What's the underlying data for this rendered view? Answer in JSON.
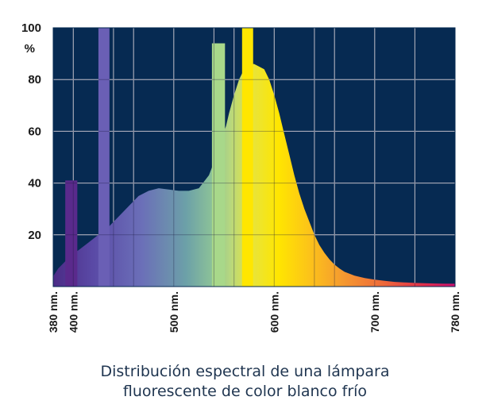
{
  "chart_data": {
    "type": "area",
    "title": "",
    "xlabel": "",
    "ylabel": "%",
    "xlim": [
      380,
      780
    ],
    "ylim": [
      0,
      100
    ],
    "grid": true,
    "background_color": "#062a52",
    "y_ticks": [
      20,
      40,
      60,
      80,
      100
    ],
    "y_tick_labels": [
      "20",
      "40",
      "60",
      "80",
      "100"
    ],
    "y_unit_label": "%",
    "x_ticks": [
      380,
      400,
      500,
      600,
      700,
      780
    ],
    "x_tick_labels": [
      "380 nm.",
      "400 nm.",
      "500 nm.",
      "600 nm.",
      "700 nm.",
      "780 nm."
    ],
    "x_gridlines": [
      380,
      400,
      440,
      460,
      500,
      540,
      560,
      600,
      640,
      660,
      700,
      740,
      780
    ],
    "series": [
      {
        "values": [
          [
            380,
            4
          ],
          [
            385,
            7
          ],
          [
            390,
            9
          ],
          [
            395,
            11
          ],
          [
            400,
            13
          ],
          [
            405,
            14
          ],
          [
            415,
            17
          ],
          [
            425,
            20
          ],
          [
            435,
            23
          ],
          [
            445,
            27
          ],
          [
            455,
            31
          ],
          [
            465,
            35
          ],
          [
            475,
            37
          ],
          [
            485,
            38
          ],
          [
            495,
            37.5
          ],
          [
            505,
            37
          ],
          [
            515,
            37
          ],
          [
            525,
            38
          ],
          [
            535,
            43
          ],
          [
            542,
            50
          ],
          [
            548,
            58
          ],
          [
            552,
            62
          ],
          [
            555,
            67
          ],
          [
            560,
            74
          ],
          [
            565,
            80
          ],
          [
            570,
            84
          ],
          [
            575,
            86
          ],
          [
            580,
            86
          ],
          [
            585,
            85
          ],
          [
            590,
            84
          ],
          [
            595,
            80
          ],
          [
            600,
            74
          ],
          [
            605,
            67
          ],
          [
            610,
            59
          ],
          [
            615,
            51
          ],
          [
            620,
            43
          ],
          [
            625,
            36
          ],
          [
            630,
            30
          ],
          [
            635,
            25
          ],
          [
            640,
            20
          ],
          [
            645,
            16
          ],
          [
            650,
            13
          ],
          [
            655,
            10.5
          ],
          [
            660,
            8.5
          ],
          [
            665,
            7
          ],
          [
            670,
            5.7
          ],
          [
            680,
            4.2
          ],
          [
            690,
            3.3
          ],
          [
            700,
            2.7
          ],
          [
            710,
            2.2
          ],
          [
            720,
            1.8
          ],
          [
            730,
            1.6
          ],
          [
            740,
            1.4
          ],
          [
            750,
            1.3
          ],
          [
            760,
            1.2
          ],
          [
            770,
            1.1
          ],
          [
            780,
            1.1
          ]
        ]
      }
    ],
    "emission_lines": [
      {
        "x_start": 392,
        "x_end": 404,
        "peak": 41,
        "color": "#5a2a8c"
      },
      {
        "x_start": 425,
        "x_end": 436,
        "peak": 100,
        "color": "#6a5fb5"
      },
      {
        "x_start": 538,
        "x_end": 551,
        "peak": 94,
        "color": "#a8d88a"
      },
      {
        "x_start": 568,
        "x_end": 579,
        "peak": 100,
        "color": "#ffe600"
      }
    ],
    "colors": {
      "violet": "#4b2b86",
      "blue": "#6b6fb8",
      "teal": "#6ca0a8",
      "green": "#b6d77f",
      "yellow": "#ffe600",
      "orange": "#f59a30",
      "red": "#e0304a",
      "magenta": "#cc0f6e",
      "grid": "#ffffff"
    }
  },
  "caption": {
    "line1": "Distribución espectral de una lámpara",
    "line2": "fluorescente de color blanco frío"
  }
}
